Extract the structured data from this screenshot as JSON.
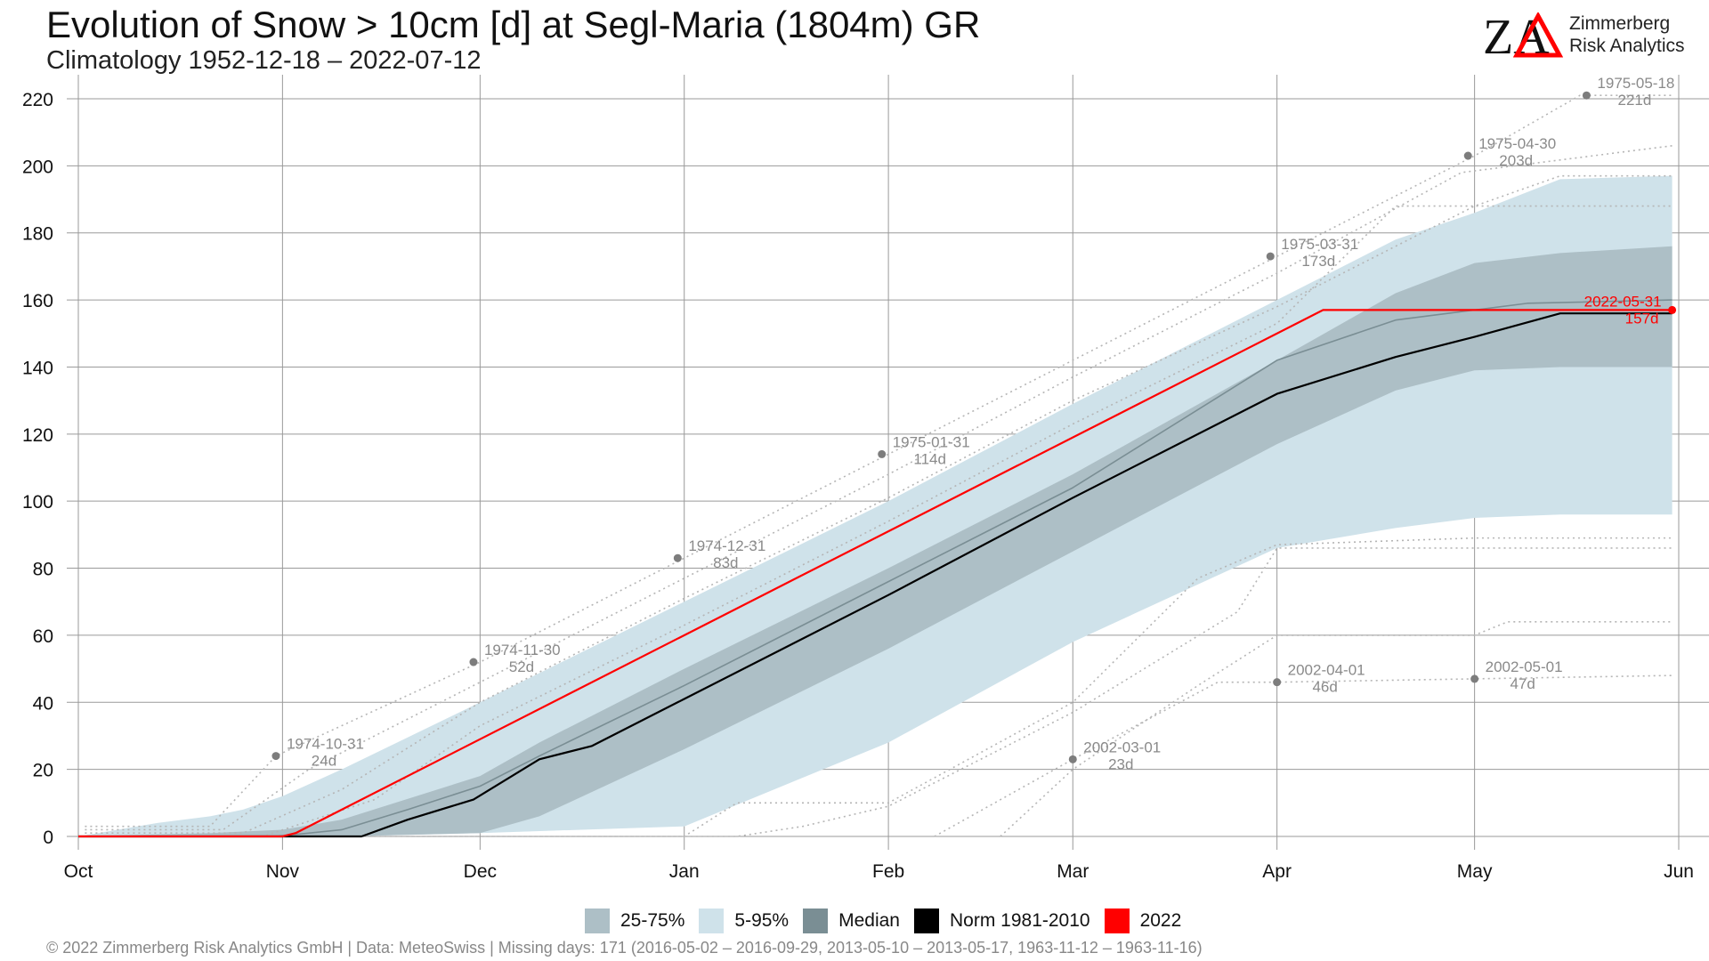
{
  "header": {
    "title": "Evolution of Snow > 10cm [d] at Segl-Maria (1804m) GR",
    "subtitle": "Climatology 1952-12-18 – 2022-07-12"
  },
  "logo": {
    "mark": "ZA",
    "line1": "Zimmerberg",
    "line2": "Risk Analytics",
    "mark_color": "#111111",
    "accent_color": "#ff0000"
  },
  "legend": {
    "items": [
      {
        "label": "25-75%",
        "color": "#adbfc6"
      },
      {
        "label": "5-95%",
        "color": "#cfe2ea"
      },
      {
        "label": "Median",
        "color": "#7a8e94"
      },
      {
        "label": "Norm 1981-2010",
        "color": "#000000"
      },
      {
        "label": "2022",
        "color": "#ff0000"
      }
    ]
  },
  "footer": {
    "text": "©  2022 Zimmerberg Risk Analytics GmbH | Data: MeteoSwiss | Missing days: 171 (2016-05-02 – 2016-09-29, 2013-05-10 – 2013-05-17, 1963-11-12 – 1963-11-16)"
  },
  "chart_data": {
    "type": "line",
    "xlabel": "",
    "ylabel": "",
    "x_unit": "days since Oct 1",
    "xlim": [
      0,
      243
    ],
    "ylim": [
      0,
      225
    ],
    "grid": true,
    "x_ticks": [
      {
        "label": "Oct",
        "x": 0
      },
      {
        "label": "Nov",
        "x": 31
      },
      {
        "label": "Dec",
        "x": 61
      },
      {
        "label": "Jan",
        "x": 92
      },
      {
        "label": "Feb",
        "x": 123
      },
      {
        "label": "Mar",
        "x": 151
      },
      {
        "label": "Apr",
        "x": 182
      },
      {
        "label": "May",
        "x": 212
      },
      {
        "label": "Jun",
        "x": 243
      }
    ],
    "y_ticks": [
      0,
      20,
      40,
      60,
      80,
      100,
      120,
      140,
      160,
      180,
      200,
      220
    ],
    "band_5_95": {
      "color": "#cfe2ea",
      "x": [
        0,
        12,
        20,
        25,
        31,
        40,
        61,
        92,
        123,
        151,
        182,
        200,
        212,
        225,
        242
      ],
      "upper": [
        0,
        4,
        6,
        8,
        12,
        20,
        40,
        70,
        100,
        129,
        160,
        178,
        186,
        196,
        197
      ],
      "lower": [
        0,
        0,
        0,
        0,
        0,
        0,
        1,
        3,
        28,
        58,
        86,
        92,
        95,
        96,
        96
      ]
    },
    "band_25_75": {
      "color": "#adbfc6",
      "x": [
        0,
        20,
        31,
        40,
        61,
        70,
        92,
        123,
        151,
        182,
        200,
        212,
        225,
        242
      ],
      "upper": [
        0,
        1,
        2,
        5,
        18,
        28,
        50,
        80,
        108,
        142,
        162,
        171,
        174,
        176
      ],
      "lower": [
        0,
        0,
        0,
        0,
        1,
        6,
        26,
        56,
        85,
        117,
        133,
        139,
        140,
        140
      ]
    },
    "series": [
      {
        "name": "Median",
        "color": "#7a8e94",
        "x": [
          0,
          30,
          40,
          50,
          61,
          70,
          92,
          123,
          151,
          182,
          200,
          212,
          220,
          242
        ],
        "y": [
          0,
          0,
          2,
          8,
          15,
          24,
          45,
          76,
          104,
          142,
          154,
          157,
          159,
          160
        ]
      },
      {
        "name": "Norm 1981-2010",
        "color": "#000000",
        "x": [
          0,
          43,
          50,
          60,
          70,
          78,
          92,
          123,
          151,
          182,
          200,
          212,
          225,
          242
        ],
        "y": [
          0,
          0,
          5,
          11,
          23,
          27,
          41,
          72,
          101,
          132,
          143,
          149,
          156,
          156
        ]
      },
      {
        "name": "2022",
        "color": "#ff0000",
        "x": [
          0,
          31,
          33,
          189,
          242
        ],
        "y": [
          0,
          0,
          1,
          157,
          157
        ]
      }
    ],
    "reference_lines": [
      {
        "x": [
          1,
          20,
          30,
          61,
          92,
          123,
          151,
          182,
          212,
          228,
          242
        ],
        "y": [
          3,
          3,
          24,
          52,
          83,
          114,
          142,
          173,
          203,
          221,
          221
        ]
      },
      {
        "x": [
          1,
          22,
          35,
          61,
          92,
          123,
          151,
          182,
          210,
          242
        ],
        "y": [
          2,
          2,
          20,
          46,
          77,
          108,
          137,
          168,
          198,
          206
        ]
      },
      {
        "x": [
          1,
          25,
          40,
          61,
          92,
          123,
          151,
          182,
          212,
          225,
          242
        ],
        "y": [
          1,
          1,
          14,
          40,
          71,
          101,
          130,
          158,
          188,
          197,
          197
        ]
      },
      {
        "x": [
          1,
          28,
          45,
          61,
          92,
          123,
          151,
          182,
          200,
          220,
          242
        ],
        "y": [
          0,
          0,
          11,
          33,
          63,
          94,
          123,
          153,
          188,
          188,
          188
        ]
      },
      {
        "x": [
          40,
          92,
          100,
          123,
          151,
          170,
          182,
          212,
          242
        ],
        "y": [
          0,
          0,
          10,
          10,
          40,
          77,
          87,
          89,
          89
        ]
      },
      {
        "x": [
          50,
          100,
          110,
          123,
          151,
          176,
          182,
          200,
          242
        ],
        "y": [
          0,
          0,
          3,
          9,
          37,
          67,
          86,
          86,
          86
        ]
      },
      {
        "x": [
          130,
          151,
          173,
          182,
          212,
          242
        ],
        "y": [
          0,
          23,
          46,
          46,
          47,
          48
        ]
      },
      {
        "x": [
          140,
          151,
          170,
          182,
          212,
          217,
          242
        ],
        "y": [
          0,
          20,
          45,
          60,
          60,
          64,
          64
        ]
      }
    ],
    "annotations": [
      {
        "date": "1974-10-31",
        "value": "24d",
        "x": 30,
        "y": 24
      },
      {
        "date": "1974-11-30",
        "value": "52d",
        "x": 60,
        "y": 52
      },
      {
        "date": "1974-12-31",
        "value": "83d",
        "x": 91,
        "y": 83
      },
      {
        "date": "1975-01-31",
        "value": "114d",
        "x": 122,
        "y": 114
      },
      {
        "date": "1975-03-31",
        "value": "173d",
        "x": 181,
        "y": 173
      },
      {
        "date": "1975-04-30",
        "value": "203d",
        "x": 211,
        "y": 203
      },
      {
        "date": "1975-05-18",
        "value": "221d",
        "x": 229,
        "y": 221
      },
      {
        "date": "2002-03-01",
        "value": "23d",
        "x": 151,
        "y": 23
      },
      {
        "date": "2002-04-01",
        "value": "46d",
        "x": 182,
        "y": 46
      },
      {
        "date": "2002-05-01",
        "value": "47d",
        "x": 212,
        "y": 47
      },
      {
        "date": "2022-05-31",
        "value": "157d",
        "x": 242,
        "y": 157,
        "color": "#ff0000"
      }
    ]
  }
}
